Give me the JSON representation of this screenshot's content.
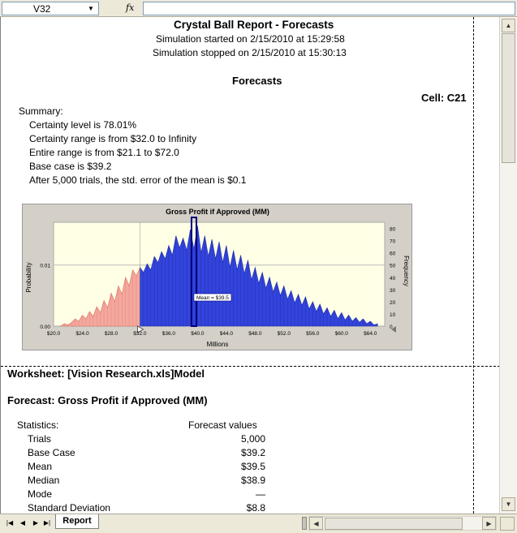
{
  "formula_bar": {
    "name_box": "V32",
    "fx_label": "fx",
    "formula": ""
  },
  "report": {
    "title": "Crystal Ball Report - Forecasts",
    "started": "Simulation started on 2/15/2010 at 15:29:58",
    "stopped": "Simulation stopped on 2/15/2010 at 15:30:13",
    "section": "Forecasts",
    "cell": "Cell: C21",
    "summary_label": "Summary:",
    "summary_lines": [
      "Certainty level is 78.01%",
      "Certainty range is from $32.0  to Infinity",
      "Entire range is from $21.1  to $72.0",
      "Base case is $39.2",
      "After 5,000 trials, the std. error of the mean is $0.1"
    ],
    "worksheet": "Worksheet: [Vision Research.xls]Model",
    "forecast": "Forecast: Gross Profit if Approved (MM)",
    "stats_label": "Statistics:",
    "stats_col": "Forecast values",
    "stats": [
      {
        "name": "Trials",
        "value": "5,000"
      },
      {
        "name": "Base Case",
        "value": "$39.2"
      },
      {
        "name": "Mean",
        "value": "$39.5"
      },
      {
        "name": "Median",
        "value": "$38.9"
      },
      {
        "name": "Mode",
        "value": "—"
      },
      {
        "name": "Standard Deviation",
        "value": "$8.8"
      }
    ]
  },
  "chart_data": {
    "type": "bar",
    "title": "Gross Profit if Approved (MM)",
    "xlabel": "Millions",
    "ylabel_left": "Probability",
    "ylabel_right": "Frequency",
    "x_ticks": [
      "$20.0",
      "$24.0",
      "$28.0",
      "$32.0",
      "$36.0",
      "$40.0",
      "$44.0",
      "$48.0",
      "$52.0",
      "$56.0",
      "$60.0",
      "$64.0"
    ],
    "left_ticks": [
      "0.00",
      "0.01"
    ],
    "right_ticks": [
      "0",
      "10",
      "20",
      "30",
      "40",
      "50",
      "60",
      "70",
      "80"
    ],
    "xlim": [
      20,
      66
    ],
    "ylim_frequency": [
      0,
      85
    ],
    "certainty_cutoff": 32.0,
    "mean_label": "Mean = $39.5",
    "mean_value": 39.5,
    "colors": {
      "below": "#f4a79d",
      "above": "#3344dd",
      "plot_bg": "#ffffe6",
      "frame": "#d4d0c8"
    },
    "series": [
      {
        "points": [
          [
            21,
            0
          ],
          [
            21.5,
            2
          ],
          [
            22,
            1
          ],
          [
            22.5,
            3
          ],
          [
            23,
            6
          ],
          [
            23.5,
            4
          ],
          [
            24,
            9
          ],
          [
            24.5,
            6
          ],
          [
            25,
            12
          ],
          [
            25.5,
            8
          ],
          [
            26,
            16
          ],
          [
            26.5,
            11
          ],
          [
            27,
            21
          ],
          [
            27.5,
            15
          ],
          [
            28,
            27
          ],
          [
            28.5,
            20
          ],
          [
            29,
            33
          ],
          [
            29.5,
            26
          ],
          [
            30,
            40
          ],
          [
            30.5,
            33
          ],
          [
            31,
            46
          ],
          [
            31.5,
            41
          ],
          [
            32,
            48
          ],
          [
            32.5,
            44
          ],
          [
            33,
            51
          ],
          [
            33.5,
            46
          ],
          [
            34,
            57
          ],
          [
            34.5,
            52
          ],
          [
            35,
            61
          ],
          [
            35.5,
            55
          ],
          [
            36,
            66
          ],
          [
            36.5,
            58
          ],
          [
            37,
            74
          ],
          [
            37.5,
            64
          ],
          [
            38,
            72
          ],
          [
            38.5,
            62
          ],
          [
            39,
            79
          ],
          [
            39.5,
            63
          ],
          [
            40,
            82
          ],
          [
            40.5,
            60
          ],
          [
            41,
            74
          ],
          [
            41.5,
            57
          ],
          [
            42,
            71
          ],
          [
            42.5,
            55
          ],
          [
            43,
            69
          ],
          [
            43.5,
            52
          ],
          [
            44,
            66
          ],
          [
            44.5,
            48
          ],
          [
            45,
            62
          ],
          [
            45.5,
            46
          ],
          [
            46,
            58
          ],
          [
            46.5,
            43
          ],
          [
            47,
            54
          ],
          [
            47.5,
            38
          ],
          [
            48,
            48
          ],
          [
            48.5,
            35
          ],
          [
            49,
            44
          ],
          [
            49.5,
            31
          ],
          [
            50,
            40
          ],
          [
            50.5,
            28
          ],
          [
            51,
            36
          ],
          [
            51.5,
            25
          ],
          [
            52,
            33
          ],
          [
            52.5,
            22
          ],
          [
            53,
            29
          ],
          [
            53.5,
            19
          ],
          [
            54,
            26
          ],
          [
            54.5,
            17
          ],
          [
            55,
            24
          ],
          [
            55.5,
            14
          ],
          [
            56,
            20
          ],
          [
            56.5,
            12
          ],
          [
            57,
            18
          ],
          [
            57.5,
            10
          ],
          [
            58,
            15
          ],
          [
            58.5,
            8
          ],
          [
            59,
            13
          ],
          [
            59.5,
            6
          ],
          [
            60,
            11
          ],
          [
            60.5,
            5
          ],
          [
            61,
            9
          ],
          [
            61.5,
            4
          ],
          [
            62,
            7
          ],
          [
            62.5,
            3
          ],
          [
            63,
            6
          ],
          [
            63.5,
            2
          ],
          [
            64,
            4
          ],
          [
            64.5,
            1
          ],
          [
            65,
            2
          ]
        ]
      }
    ]
  }
}
